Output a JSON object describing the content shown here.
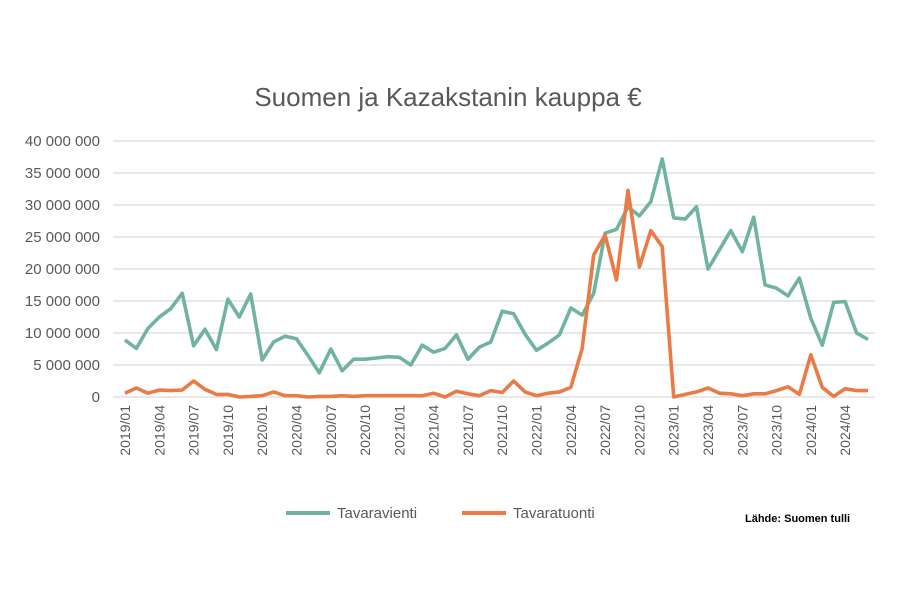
{
  "chart_data": {
    "type": "line",
    "title": "Suomen ja Kazakstanin kauppa €",
    "xlabel": "",
    "ylabel": "",
    "ylim": [
      0,
      40000000
    ],
    "grid": true,
    "legend_position": "bottom",
    "source": "Lähde: Suomen tulli",
    "y_ticks": [
      0,
      5000000,
      10000000,
      15000000,
      20000000,
      25000000,
      30000000,
      35000000,
      40000000
    ],
    "y_tick_labels": [
      "0",
      "5 000 000",
      "10 000 000",
      "15 000 000",
      "20 000 000",
      "25 000 000",
      "30 000 000",
      "35 000 000",
      "40 000 000"
    ],
    "x_tick_labels": [
      "2019/01",
      "2019/04",
      "2019/07",
      "2019/10",
      "2020/01",
      "2020/04",
      "2020/07",
      "2020/10",
      "2021/01",
      "2021/04",
      "2021/07",
      "2021/10",
      "2022/01",
      "2022/04",
      "2022/07",
      "2022/10",
      "2023/01",
      "2023/04",
      "2023/07",
      "2023/10",
      "2024/01",
      "2024/04"
    ],
    "x_range": [
      "2019/01",
      "2024/06"
    ],
    "series": [
      {
        "name": "Tavaravienti",
        "color": "#70b49a",
        "values": [
          8.9,
          7.6,
          10.7,
          12.5,
          13.8,
          16.2,
          8.0,
          10.6,
          7.4,
          15.3,
          12.5,
          16.1,
          5.8,
          8.6,
          9.5,
          9.1,
          6.5,
          3.8,
          7.5,
          4.1,
          5.9,
          5.9,
          6.1,
          6.3,
          6.2,
          5.0,
          8.1,
          7.0,
          7.6,
          9.7,
          5.9,
          7.8,
          8.6,
          13.4,
          13.0,
          9.8,
          7.3,
          8.4,
          9.7,
          13.9,
          12.8,
          16.2,
          25.6,
          26.2,
          29.7,
          28.3,
          30.5,
          37.2,
          28.0,
          27.8,
          29.7,
          20.0,
          23.0,
          26.0,
          22.7,
          28.1,
          17.5,
          17.0,
          15.8,
          18.6,
          12.3,
          8.1,
          14.8,
          14.9,
          10.0,
          9.0
        ]
      },
      {
        "name": "Tavaratuonti",
        "color": "#ea7b47",
        "values": [
          0.6,
          1.4,
          0.6,
          1.1,
          1.0,
          1.1,
          2.5,
          1.2,
          0.4,
          0.4,
          0.0,
          0.1,
          0.2,
          0.8,
          0.2,
          0.2,
          0.0,
          0.1,
          0.1,
          0.2,
          0.1,
          0.2,
          0.2,
          0.2,
          0.2,
          0.2,
          0.2,
          0.6,
          0.0,
          0.9,
          0.5,
          0.2,
          1.0,
          0.7,
          2.5,
          0.8,
          0.2,
          0.6,
          0.8,
          1.5,
          7.6,
          22.2,
          25.3,
          18.3,
          32.3,
          20.3,
          26.0,
          23.5,
          0.0,
          0.4,
          0.8,
          1.4,
          0.6,
          0.5,
          0.2,
          0.5,
          0.5,
          1.0,
          1.6,
          0.4,
          6.6,
          1.5,
          0.1,
          1.3,
          1.0,
          1.0
        ]
      }
    ],
    "value_unit_multiplier": 1000000
  }
}
